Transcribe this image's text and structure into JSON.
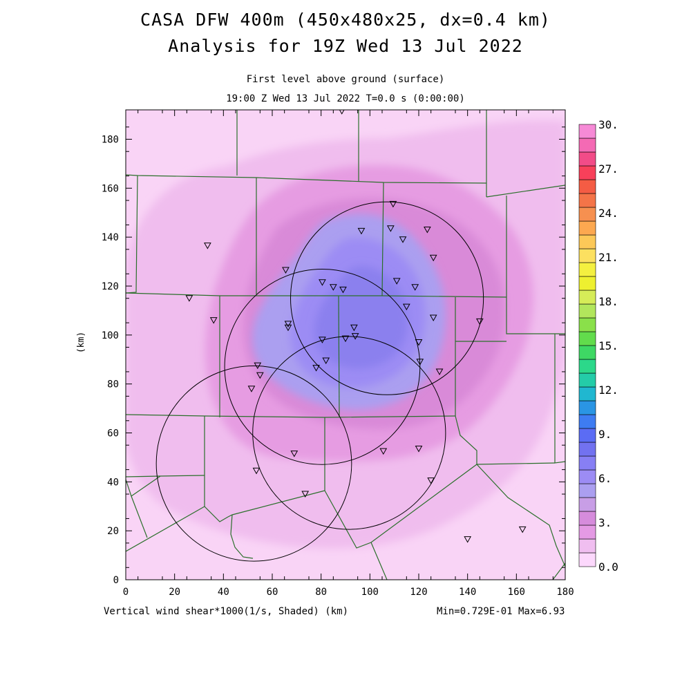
{
  "title": {
    "line1": "CASA DFW 400m (450x480x25, dx=0.4 km)",
    "line2": "Analysis for 19Z Wed 13 Jul 2022"
  },
  "subtitle": {
    "line1": "First level above ground (surface)",
    "line2": "19:00 Z Wed 13 Jul 2022   T=0.0 s (0:00:00)"
  },
  "x_axis": {
    "label": "Vertical wind shear*1000(1/s, Shaded)  (km)",
    "range": [
      0,
      180
    ],
    "ticks": [
      "0",
      "20",
      "40",
      "60",
      "80",
      "100",
      "120",
      "140",
      "160",
      "180"
    ]
  },
  "y_axis": {
    "label": "(km)",
    "range": [
      0,
      192
    ],
    "ticks": [
      "0",
      "20",
      "40",
      "60",
      "80",
      "100",
      "120",
      "140",
      "160",
      "180"
    ]
  },
  "stats": "Min=0.729E-01 Max=6.93",
  "colorbar": {
    "labels": [
      "0.0",
      "3.",
      "6.",
      "9.",
      "12.",
      "15.",
      "18.",
      "21.",
      "24.",
      "27.",
      "30."
    ],
    "colors": [
      "#fcd8fc",
      "#f0bef0",
      "#e49ae4",
      "#d68cdc",
      "#c89ee6",
      "#ab9ff0",
      "#9c8cf4",
      "#877ff4",
      "#7272f0",
      "#5b6cf4",
      "#3e7cf2",
      "#2a95e4",
      "#20b7d0",
      "#24cca8",
      "#2cd88a",
      "#3ed864",
      "#62dc4c",
      "#8ae04a",
      "#b2e65c",
      "#d6ec58",
      "#eef030",
      "#f4f040",
      "#fce060",
      "#fcc858",
      "#fca850",
      "#f69050",
      "#f47448",
      "#f45c44",
      "#f8405a",
      "#f24c88",
      "#f46ab4",
      "#f68ad6"
    ]
  },
  "radar_circles": [
    {
      "cx_km": 107,
      "cy_km": 115,
      "r_km": 39.5
    },
    {
      "cx_km": 80.5,
      "cy_km": 87,
      "r_km": 40
    },
    {
      "cx_km": 91.5,
      "cy_km": 60,
      "r_km": 39.5
    },
    {
      "cx_km": 52.5,
      "cy_km": 47.5,
      "r_km": 40
    }
  ],
  "stations_km": [
    [
      88.5,
      191.5
    ],
    [
      109.5,
      153.5
    ],
    [
      108.5,
      143.5
    ],
    [
      96.5,
      142.5
    ],
    [
      123.5,
      143
    ],
    [
      113.5,
      139
    ],
    [
      33.5,
      136.5
    ],
    [
      126,
      131.5
    ],
    [
      65.5,
      126.5
    ],
    [
      80.5,
      121.5
    ],
    [
      85,
      119.5
    ],
    [
      89,
      118.5
    ],
    [
      111,
      122
    ],
    [
      118.5,
      119.5
    ],
    [
      26,
      115
    ],
    [
      115,
      111.5
    ],
    [
      36,
      106
    ],
    [
      66.5,
      104.5
    ],
    [
      66.5,
      103
    ],
    [
      126,
      107
    ],
    [
      145,
      105.5
    ],
    [
      93.5,
      103
    ],
    [
      80.5,
      98
    ],
    [
      90,
      98.5
    ],
    [
      94,
      99.5
    ],
    [
      120,
      97
    ],
    [
      54,
      87.5
    ],
    [
      82,
      89.5
    ],
    [
      78,
      86.5
    ],
    [
      55,
      83.5
    ],
    [
      120.5,
      89
    ],
    [
      128.5,
      85
    ],
    [
      51.5,
      78
    ],
    [
      69,
      51.5
    ],
    [
      105.5,
      52.5
    ],
    [
      120,
      53.5
    ],
    [
      53.5,
      44.5
    ],
    [
      125,
      40.5
    ],
    [
      73.5,
      35
    ],
    [
      140,
      16.5
    ],
    [
      162.5,
      20.5
    ]
  ]
}
